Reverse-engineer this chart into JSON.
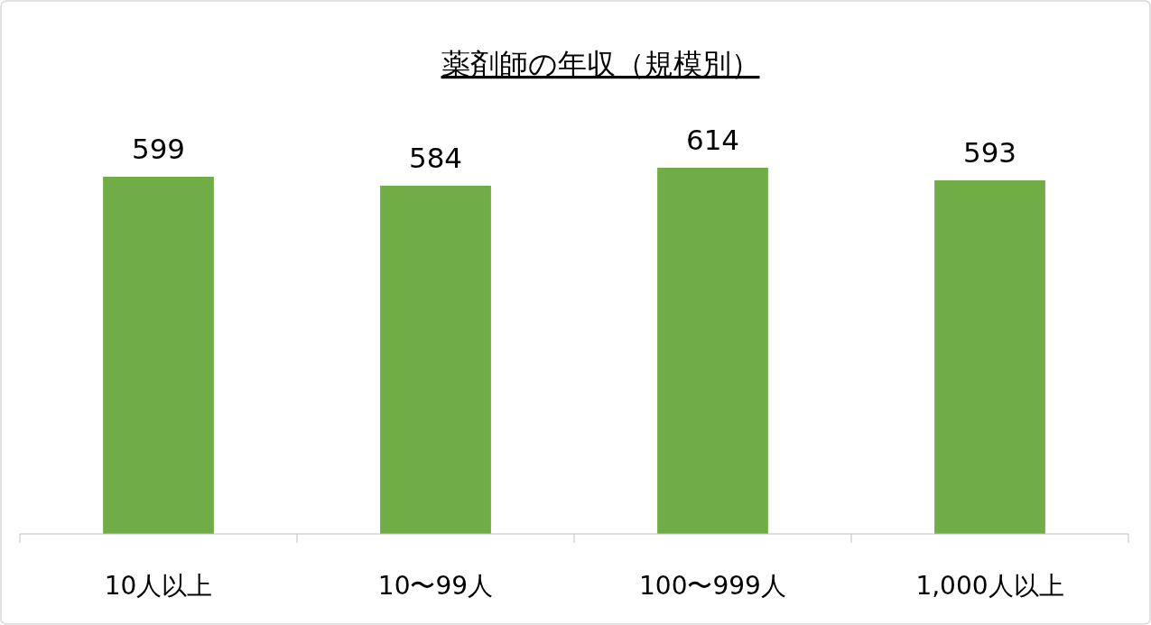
{
  "chart_data": {
    "type": "bar",
    "title": "薬剤師の年収（規模別）",
    "categories": [
      "10人以上",
      "10〜99人",
      "100〜999人",
      "1,000人以上"
    ],
    "values": [
      599,
      584,
      614,
      593
    ],
    "color": "#70ad47",
    "data_labels": true
  }
}
